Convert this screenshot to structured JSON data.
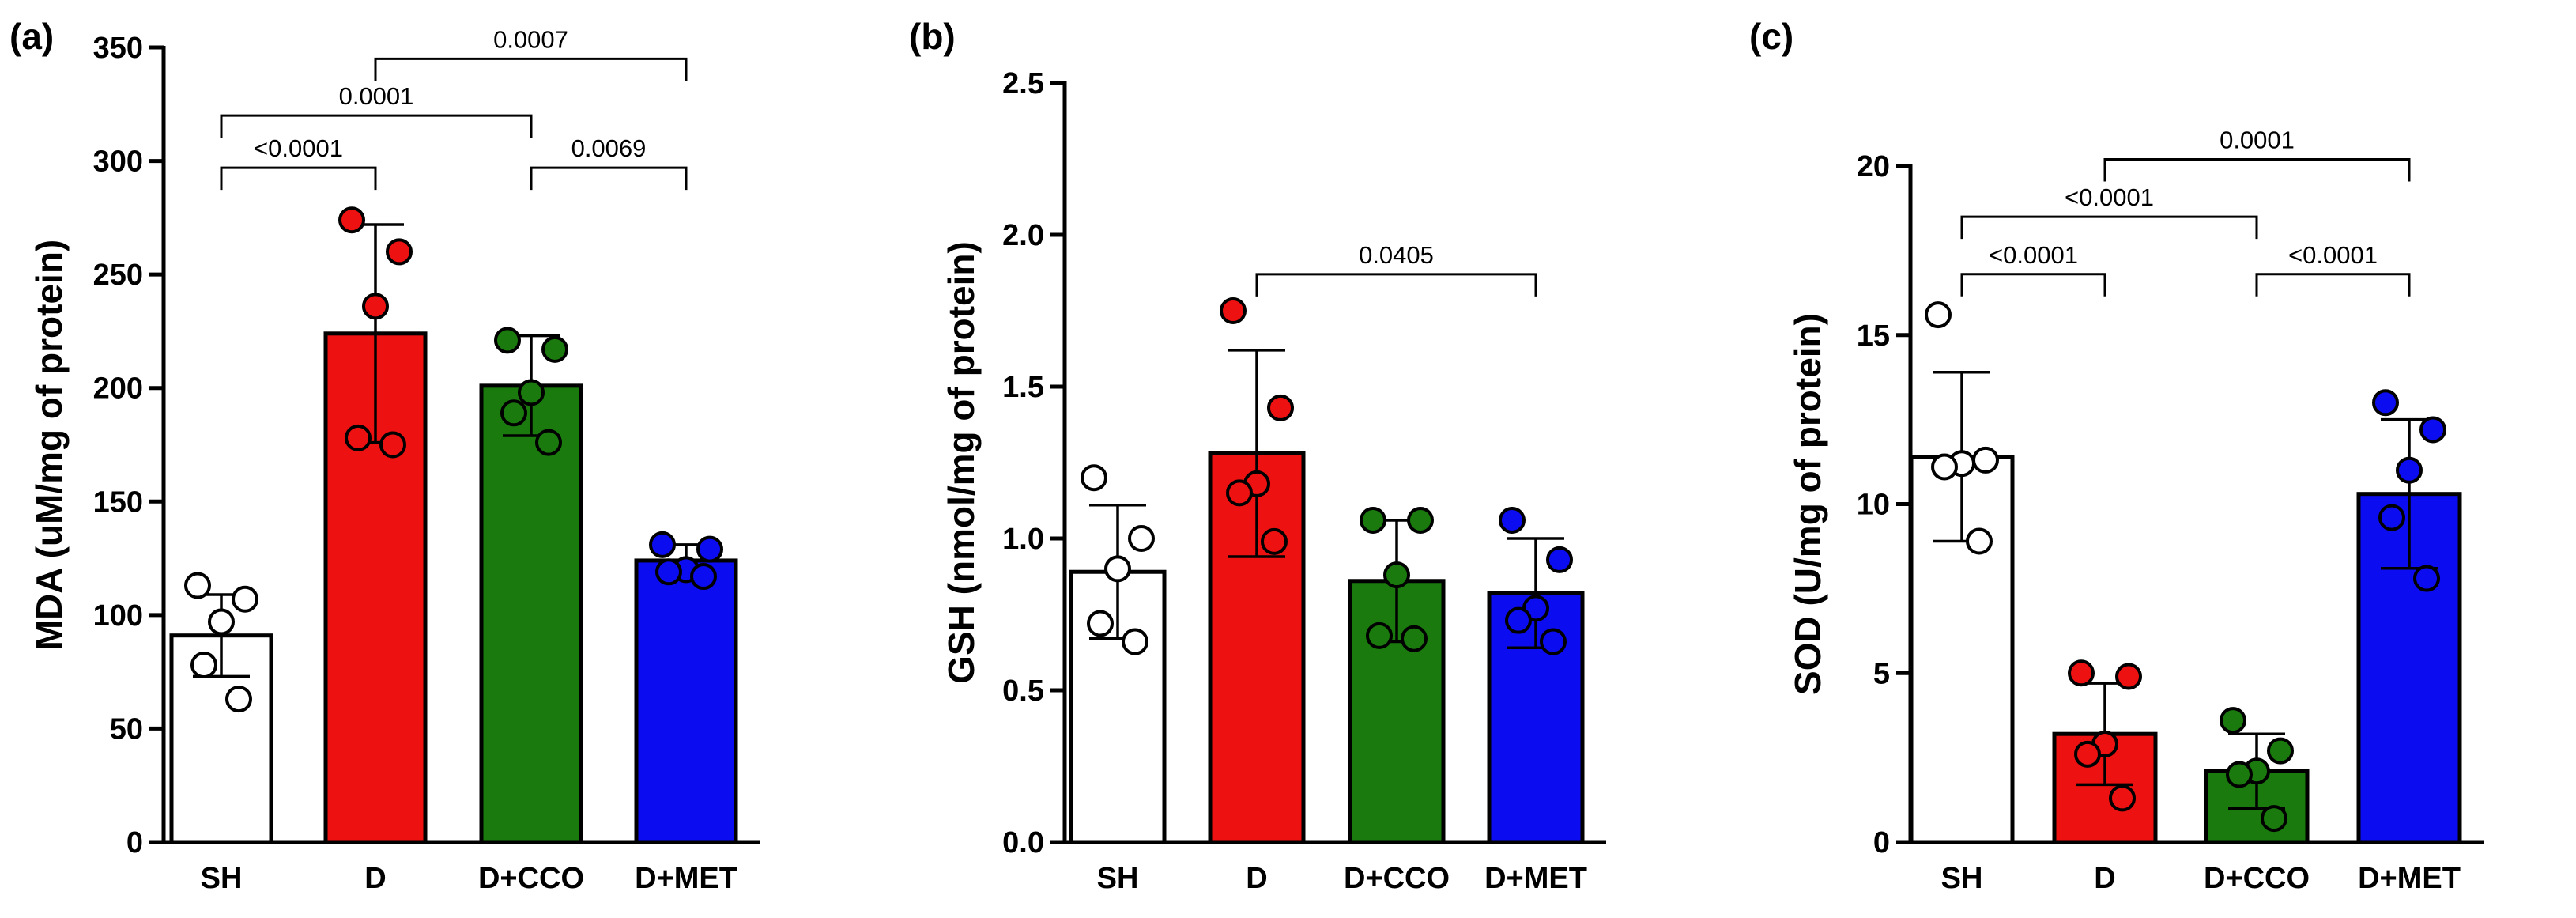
{
  "chart_data": [
    {
      "type": "bar",
      "panel": "(a)",
      "ylabel": "MDA (uM/mg of protein)",
      "ylim": [
        0,
        350
      ],
      "yticks": [
        0,
        50,
        100,
        150,
        200,
        250,
        300,
        350
      ],
      "categories": [
        "SH",
        "D",
        "D+CCO",
        "D+MET"
      ],
      "colors": [
        "#ffffff",
        "#ee1111",
        "#1a7a0e",
        "#0c0cf0"
      ],
      "values": [
        91,
        224,
        201,
        124
      ],
      "sd": [
        18,
        48,
        22,
        7
      ],
      "points": [
        [
          113,
          107,
          97,
          78,
          63
        ],
        [
          274,
          260,
          236,
          178,
          175
        ],
        [
          221,
          217,
          198,
          189,
          176
        ],
        [
          131,
          129,
          120,
          119,
          117
        ]
      ],
      "comparisons": [
        {
          "from": 0,
          "to": 1,
          "label": "<0.0001",
          "y": 297
        },
        {
          "from": 0,
          "to": 2,
          "label": "0.0001",
          "y": 320
        },
        {
          "from": 1,
          "to": 3,
          "label": "0.0007",
          "y": 345
        },
        {
          "from": 2,
          "to": 3,
          "label": "0.0069",
          "y": 297
        }
      ]
    },
    {
      "type": "bar",
      "panel": "(b)",
      "ylabel": "GSH (nmol/mg of protein)",
      "ylim": [
        0,
        2.5
      ],
      "yticks": [
        "0.0",
        "0.5",
        "1.0",
        "1.5",
        "2.0",
        "2.5"
      ],
      "categories": [
        "SH",
        "D",
        "D+CCO",
        "D+MET"
      ],
      "colors": [
        "#ffffff",
        "#ee1111",
        "#1a7a0e",
        "#0c0cf0"
      ],
      "values": [
        0.89,
        1.28,
        0.86,
        0.82
      ],
      "sd": [
        0.22,
        0.34,
        0.2,
        0.18
      ],
      "points": [
        [
          1.2,
          1.0,
          0.9,
          0.72,
          0.66
        ],
        [
          1.75,
          1.43,
          1.18,
          1.15,
          0.99
        ],
        [
          1.06,
          1.06,
          0.88,
          0.68,
          0.67
        ],
        [
          1.06,
          0.93,
          0.77,
          0.73,
          0.66
        ]
      ],
      "comparisons": [
        {
          "from": 1,
          "to": 3,
          "label": "0.0405",
          "y": 1.87
        }
      ]
    },
    {
      "type": "bar",
      "panel": "(c)",
      "ylabel": "SOD (U/mg of protein)",
      "ylim": [
        0,
        20
      ],
      "yticks": [
        0,
        5,
        10,
        15,
        20
      ],
      "categories": [
        "SH",
        "D",
        "D+CCO",
        "D+MET"
      ],
      "colors": [
        "#ffffff",
        "#ee1111",
        "#1a7a0e",
        "#0c0cf0"
      ],
      "values": [
        11.4,
        3.2,
        2.1,
        10.3
      ],
      "sd": [
        2.5,
        1.5,
        1.1,
        2.2
      ],
      "points": [
        [
          15.6,
          11.3,
          11.2,
          11.1,
          8.9
        ],
        [
          5.0,
          4.9,
          2.9,
          2.6,
          1.3
        ],
        [
          3.6,
          2.7,
          2.1,
          2.0,
          0.7
        ],
        [
          13.0,
          12.2,
          11.0,
          9.6,
          7.8
        ]
      ],
      "comparisons": [
        {
          "from": 0,
          "to": 1,
          "label": "<0.0001",
          "y": 16.8
        },
        {
          "from": 0,
          "to": 2,
          "label": "<0.0001",
          "y": 18.5
        },
        {
          "from": 1,
          "to": 3,
          "label": "0.0001",
          "y": 20.2
        },
        {
          "from": 2,
          "to": 3,
          "label": "<0.0001",
          "y": 16.8
        }
      ]
    }
  ]
}
